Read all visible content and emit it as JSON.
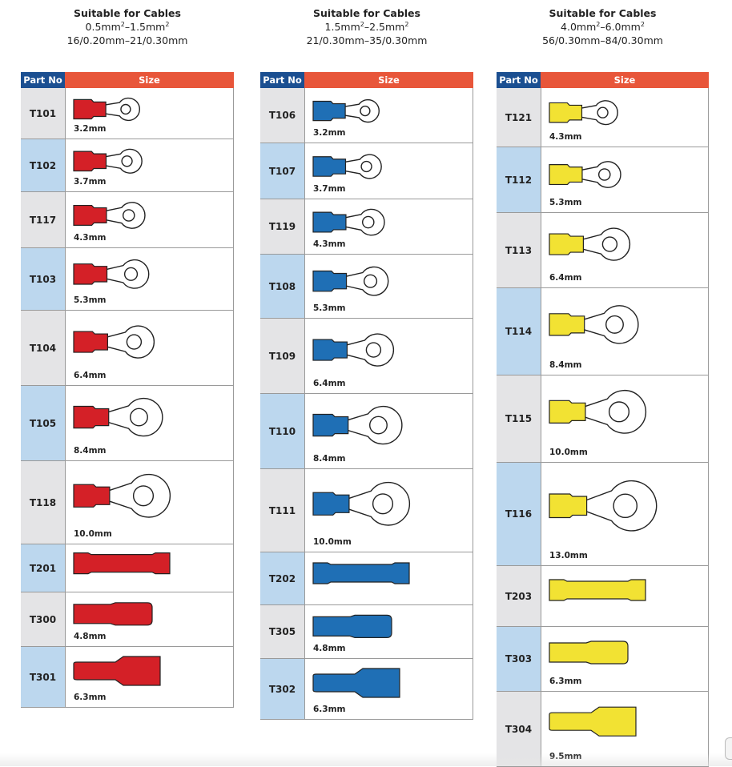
{
  "header_labels": {
    "part_no": "Part No",
    "size": "Size"
  },
  "colors": {
    "part_header": "#1b4f91",
    "size_header": "#e8563a",
    "red": "#d42027",
    "blue": "#1f6fb5",
    "yellow": "#f2e233"
  },
  "columns": [
    {
      "title": "Suitable for Cables",
      "range_a": "0.5mm",
      "range_b": "1.5mm",
      "strand": "16/0.20mm–21/0.30mm",
      "color": "red",
      "rows": [
        {
          "part": "T101",
          "size": "3.2mm",
          "type": "ring",
          "ring": 1
        },
        {
          "part": "T102",
          "size": "3.7mm",
          "type": "ring",
          "ring": 2
        },
        {
          "part": "T117",
          "size": "4.3mm",
          "type": "ring",
          "ring": 3
        },
        {
          "part": "T103",
          "size": "5.3mm",
          "type": "ring",
          "ring": 4
        },
        {
          "part": "T104",
          "size": "6.4mm",
          "type": "ring",
          "ring": 5
        },
        {
          "part": "T105",
          "size": "8.4mm",
          "type": "ring",
          "ring": 6
        },
        {
          "part": "T118",
          "size": "10.0mm",
          "type": "ring",
          "ring": 7
        },
        {
          "part": "T201",
          "size": "",
          "type": "butt"
        },
        {
          "part": "T300",
          "size": "4.8mm",
          "type": "male"
        },
        {
          "part": "T301",
          "size": "6.3mm",
          "type": "female"
        }
      ]
    },
    {
      "title": "Suitable for Cables",
      "range_a": "1.5mm",
      "range_b": "2.5mm",
      "strand": "21/0.30mm–35/0.30mm",
      "color": "blue",
      "rows": [
        {
          "part": "T106",
          "size": "3.2mm",
          "type": "ring",
          "ring": 1
        },
        {
          "part": "T107",
          "size": "3.7mm",
          "type": "ring",
          "ring": 2
        },
        {
          "part": "T119",
          "size": "4.3mm",
          "type": "ring",
          "ring": 3
        },
        {
          "part": "T108",
          "size": "5.3mm",
          "type": "ring",
          "ring": 4
        },
        {
          "part": "T109",
          "size": "6.4mm",
          "type": "ring",
          "ring": 5
        },
        {
          "part": "T110",
          "size": "8.4mm",
          "type": "ring",
          "ring": 6
        },
        {
          "part": "T111",
          "size": "10.0mm",
          "type": "ring",
          "ring": 7
        },
        {
          "part": "T202",
          "size": "",
          "type": "butt"
        },
        {
          "part": "T305",
          "size": "4.8mm",
          "type": "male"
        },
        {
          "part": "T302",
          "size": "6.3mm",
          "type": "female"
        }
      ]
    },
    {
      "title": "Suitable for Cables",
      "range_a": "4.0mm",
      "range_b": "6.0mm",
      "strand": "56/0.30mm–84/0.30mm",
      "color": "yellow",
      "rows": [
        {
          "part": "T121",
          "size": "4.3mm",
          "type": "ring",
          "ring": 2
        },
        {
          "part": "T112",
          "size": "5.3mm",
          "type": "ring",
          "ring": 3
        },
        {
          "part": "T113",
          "size": "6.4mm",
          "type": "ring",
          "ring": 5
        },
        {
          "part": "T114",
          "size": "8.4mm",
          "type": "ring",
          "ring": 6
        },
        {
          "part": "T115",
          "size": "10.0mm",
          "type": "ring",
          "ring": 7
        },
        {
          "part": "T116",
          "size": "13.0mm",
          "type": "ring",
          "ring": 8
        },
        {
          "part": "T203",
          "size": "",
          "type": "butt"
        },
        {
          "part": "T303",
          "size": "6.3mm",
          "type": "male"
        },
        {
          "part": "T304",
          "size": "9.5mm",
          "type": "female"
        }
      ]
    }
  ]
}
